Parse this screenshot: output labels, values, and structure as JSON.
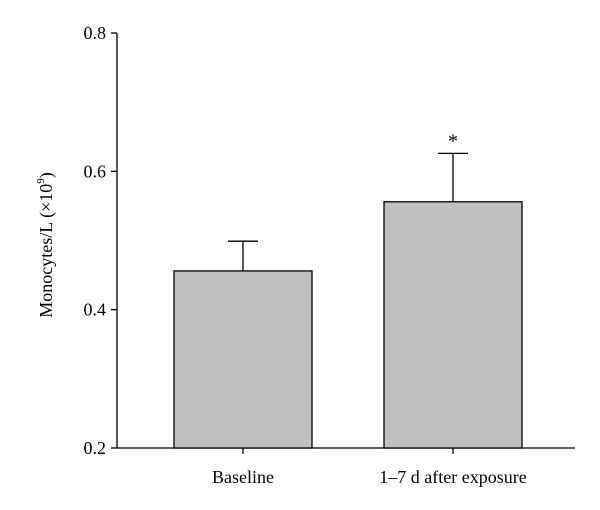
{
  "chart_data": {
    "type": "bar",
    "categories": [
      "Baseline",
      "1–7 d after exposure"
    ],
    "values": [
      0.456,
      0.556
    ],
    "error_upper": [
      0.499,
      0.626
    ],
    "annotations": [
      "",
      "*"
    ],
    "ylabel": "Monocytes/L (×10",
    "ylabel_superscript": "9",
    "ylabel_suffix": ")",
    "ylim": [
      0.2,
      0.8
    ],
    "yticks": [
      "0.2",
      "0.4",
      "0.6",
      "0.8"
    ],
    "grid": false,
    "bar_color": "#c0c0c0",
    "edge_color": "#000000"
  }
}
